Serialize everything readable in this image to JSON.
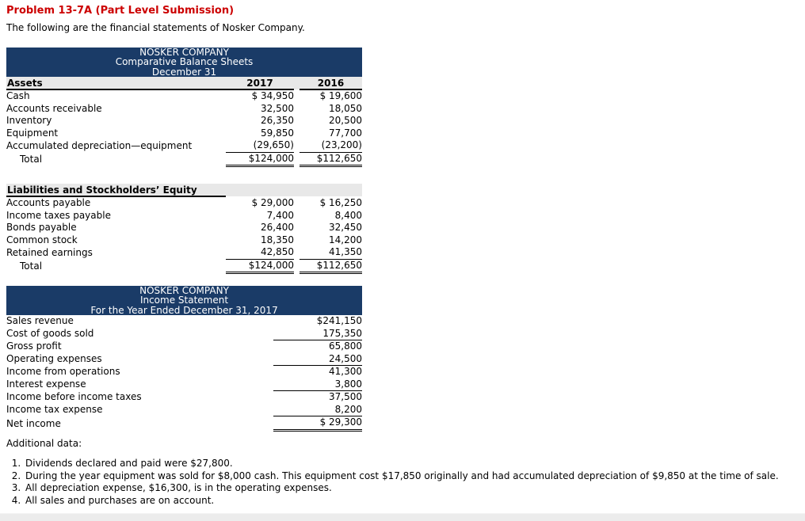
{
  "page": {
    "title": "Problem 13-7A (Part Level Submission)",
    "intro": "The following are the financial statements of Nosker Company.",
    "additional_data_label": "Additional data:",
    "additional_data": [
      "Dividends declared and paid were $27,800.",
      "During the year equipment was sold for $8,000 cash. This equipment cost $17,850 originally and had accumulated depreciation of $9,850 at the time of sale.",
      "All depreciation expense, $16,300, is in the operating expenses.",
      "All sales and purchases are on account."
    ]
  },
  "colors": {
    "statement_header_bg": "#1a3b67",
    "section_header_bg": "#e8e8e8",
    "problem_title_red": "#cc0000"
  },
  "balance_sheet": {
    "company": "NOSKER COMPANY",
    "statement_title": "Comparative Balance Sheets",
    "date_line": "December 31",
    "columns": [
      "2017",
      "2016"
    ],
    "assets": {
      "section_label": "Assets",
      "rows": [
        {
          "label": "Cash",
          "c1": "$ 34,950",
          "c2": "$ 19,600"
        },
        {
          "label": "Accounts receivable",
          "c1": "32,500",
          "c2": "18,050"
        },
        {
          "label": "Inventory",
          "c1": "26,350",
          "c2": "20,500"
        },
        {
          "label": "Equipment",
          "c1": "59,850",
          "c2": "77,700"
        },
        {
          "label": "Accumulated depreciation—equipment",
          "c1": "(29,650)",
          "c2": "(23,200)",
          "underline": true
        },
        {
          "label": "Total",
          "c1": "$124,000",
          "c2": "$112,650",
          "total": true,
          "indent": true
        }
      ]
    },
    "liabilities": {
      "section_label": "Liabilities and Stockholders’ Equity",
      "rows": [
        {
          "label": "Accounts payable",
          "c1": "$ 29,000",
          "c2": "$ 16,250"
        },
        {
          "label": "Income taxes payable",
          "c1": "7,400",
          "c2": "8,400"
        },
        {
          "label": "Bonds payable",
          "c1": "26,400",
          "c2": "32,450"
        },
        {
          "label": "Common stock",
          "c1": "18,350",
          "c2": "14,200"
        },
        {
          "label": "Retained earnings",
          "c1": "42,850",
          "c2": "41,350",
          "underline": true
        },
        {
          "label": "Total",
          "c1": "$124,000",
          "c2": "$112,650",
          "total": true,
          "indent": true
        }
      ]
    }
  },
  "income_statement": {
    "company": "NOSKER COMPANY",
    "statement_title": "Income Statement",
    "date_line": "For the Year Ended December 31, 2017",
    "rows": [
      {
        "label": "Sales revenue",
        "c1": "$241,150"
      },
      {
        "label": "Cost of goods sold",
        "c1": "175,350",
        "underline": true
      },
      {
        "label": "Gross profit",
        "c1": "65,800"
      },
      {
        "label": "Operating expenses",
        "c1": "24,500",
        "underline": true
      },
      {
        "label": "Income from operations",
        "c1": "41,300"
      },
      {
        "label": "Interest expense",
        "c1": "3,800",
        "underline": true
      },
      {
        "label": "Income before income taxes",
        "c1": "37,500"
      },
      {
        "label": "Income tax expense",
        "c1": "8,200",
        "underline": true
      },
      {
        "label": "Net income",
        "c1": "$ 29,300",
        "total": true
      }
    ]
  }
}
